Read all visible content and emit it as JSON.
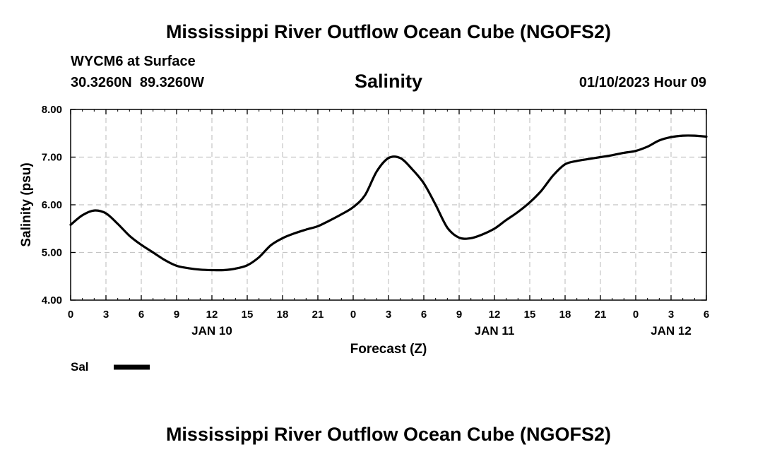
{
  "header": {
    "title": "Mississippi River Outflow Ocean Cube (NGOFS2)",
    "station": "WYCM6 at Surface",
    "coords": "30.3260N  89.3260W",
    "subtitle": "Salinity",
    "datetime": "01/10/2023 Hour 09"
  },
  "legend": {
    "label": "Sal",
    "color": "#000000"
  },
  "footer": {
    "title": "Mississippi River Outflow Ocean Cube (NGOFS2)"
  },
  "chart_data": {
    "type": "line",
    "title": "Salinity",
    "xlabel": "Forecast (Z)",
    "ylabel": "Salinity (psu)",
    "x_unit": "hours since 2023-01-10 00Z",
    "xlim": [
      0,
      54
    ],
    "ylim": [
      4.0,
      8.0
    ],
    "grid": true,
    "legend_position": "bottom-left",
    "x_ticks": [
      0,
      3,
      6,
      9,
      12,
      15,
      18,
      21,
      24,
      27,
      30,
      33,
      36,
      39,
      42,
      45,
      48,
      51,
      54
    ],
    "x_tick_labels": [
      "0",
      "3",
      "6",
      "9",
      "12",
      "15",
      "18",
      "21",
      "0",
      "3",
      "6",
      "9",
      "12",
      "15",
      "18",
      "21",
      "0",
      "3",
      "6"
    ],
    "y_ticks": [
      4.0,
      5.0,
      6.0,
      7.0,
      8.0
    ],
    "y_tick_labels": [
      "4.00",
      "5.00",
      "6.00",
      "7.00",
      "8.00"
    ],
    "date_labels": [
      {
        "label": "JAN 10",
        "x": 12
      },
      {
        "label": "JAN 11",
        "x": 36
      },
      {
        "label": "JAN 12",
        "x": 51
      }
    ],
    "series": [
      {
        "name": "Sal",
        "x": [
          0,
          1,
          2,
          3,
          4,
          5,
          6,
          7,
          8,
          9,
          10,
          11,
          12,
          13,
          14,
          15,
          16,
          17,
          18,
          19,
          20,
          21,
          22,
          23,
          24,
          25,
          26,
          27,
          28,
          29,
          30,
          31,
          32,
          33,
          34,
          35,
          36,
          37,
          38,
          39,
          40,
          41,
          42,
          43,
          44,
          45,
          46,
          47,
          48,
          49,
          50,
          51,
          52,
          53,
          54
        ],
        "values": [
          5.58,
          5.78,
          5.88,
          5.82,
          5.6,
          5.35,
          5.16,
          5.0,
          4.84,
          4.72,
          4.67,
          4.64,
          4.63,
          4.63,
          4.66,
          4.73,
          4.9,
          5.15,
          5.3,
          5.4,
          5.48,
          5.55,
          5.67,
          5.8,
          5.95,
          6.2,
          6.7,
          6.98,
          6.98,
          6.75,
          6.45,
          6.0,
          5.52,
          5.31,
          5.3,
          5.38,
          5.5,
          5.68,
          5.85,
          6.05,
          6.3,
          6.62,
          6.85,
          6.92,
          6.96,
          7.0,
          7.04,
          7.09,
          7.13,
          7.22,
          7.35,
          7.42,
          7.45,
          7.45,
          7.43
        ]
      }
    ]
  }
}
